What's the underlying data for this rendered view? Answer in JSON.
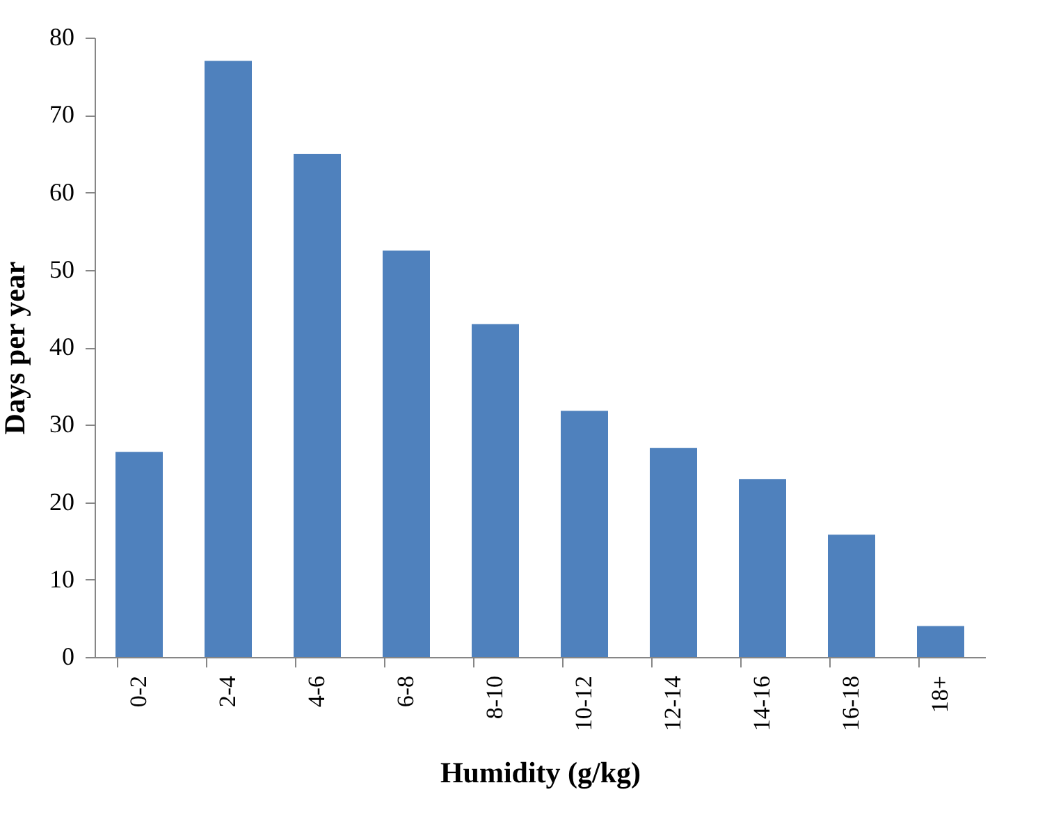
{
  "chart_data": {
    "type": "bar",
    "xlabel": "Humidity (g/kg)",
    "ylabel": "Days per year",
    "categories": [
      "0-2",
      "2-4",
      "4-6",
      "6-8",
      "8-10",
      "10-12",
      "12-14",
      "14-16",
      "16-18",
      "18+"
    ],
    "series": [
      {
        "color": "#4f81bd",
        "values": [
          26.5,
          77,
          65,
          52.5,
          43,
          31.8,
          27,
          23,
          15.8,
          4
        ]
      }
    ],
    "ylim": [
      0,
      80
    ],
    "yticks": [
      0,
      10,
      20,
      30,
      40,
      50,
      60,
      70,
      80
    ],
    "grid": false,
    "legend": false
  }
}
